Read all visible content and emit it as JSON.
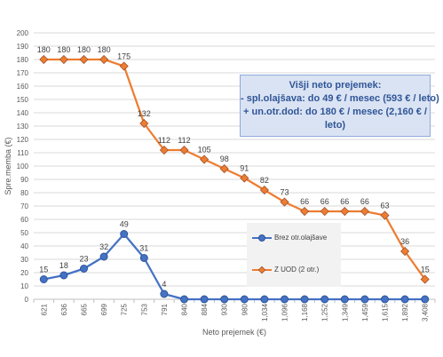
{
  "chart_data": {
    "type": "line",
    "title": "",
    "xlabel": "Neto prejemek (€)",
    "ylabel": "Spre.memba (€)",
    "ylim": [
      0,
      200
    ],
    "yticks": [
      0,
      10,
      20,
      30,
      40,
      50,
      60,
      70,
      80,
      90,
      100,
      110,
      120,
      130,
      140,
      150,
      160,
      170,
      180,
      190,
      200
    ],
    "grid": "horizontal",
    "legend_position": "center-right",
    "categories": [
      "621",
      "636",
      "665",
      "699",
      "725",
      "753",
      "791",
      "840",
      "884",
      "930",
      "980",
      "1,034",
      "1,096",
      "1,168",
      "1,252",
      "1,349",
      "1,459",
      "1,615",
      "1,892",
      "3,408"
    ],
    "series": [
      {
        "name": "Brez otr.olajšave",
        "color": "#4472c4",
        "marker": "circle",
        "values": [
          15,
          18,
          23,
          32,
          49,
          31,
          4,
          0,
          0,
          0,
          0,
          0,
          0,
          0,
          0,
          0,
          0,
          0,
          0,
          0
        ],
        "labels": [
          "15",
          "18",
          "23",
          "32",
          "49",
          "31",
          "4",
          "",
          "",
          "",
          "",
          "",
          "",
          "",
          "",
          "",
          "",
          "",
          "",
          ""
        ]
      },
      {
        "name": "Z  UOD (2 otr.)",
        "color": "#ed7d31",
        "marker": "diamond",
        "values": [
          180,
          180,
          180,
          180,
          175,
          132,
          112,
          112,
          105,
          98,
          91,
          82,
          73,
          66,
          66,
          66,
          66,
          63,
          36,
          15
        ],
        "labels": [
          "180",
          "180",
          "180",
          "180",
          "175",
          "132",
          "112",
          "112",
          "105",
          "98",
          "91",
          "82",
          "73",
          "66",
          "66",
          "66",
          "66",
          "63",
          "36",
          "15"
        ]
      }
    ],
    "annotation": {
      "lines": [
        "Višji neto prejemek:",
        "- spl.olajšava: do 49 € / mesec (593 € / leto)",
        "+ un.otr.dod: do 180 € / mesec (2,160 € /",
        "leto)"
      ]
    }
  }
}
